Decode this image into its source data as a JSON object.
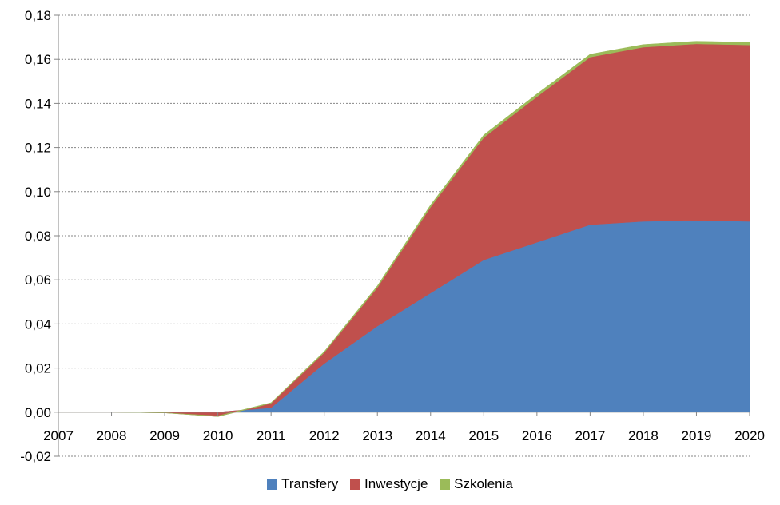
{
  "chart_data": {
    "type": "area",
    "stacked": true,
    "title": "",
    "xlabel": "",
    "ylabel": "",
    "x": [
      "2007",
      "2008",
      "2009",
      "2010",
      "2011",
      "2012",
      "2013",
      "2014",
      "2015",
      "2016",
      "2017",
      "2018",
      "2019",
      "2020"
    ],
    "ylim": [
      -0.02,
      0.18
    ],
    "yticks": [
      "-0,02",
      "0,00",
      "0,02",
      "0,04",
      "0,06",
      "0,08",
      "0,10",
      "0,12",
      "0,14",
      "0,16",
      "0,18"
    ],
    "ytick_values": [
      -0.02,
      0.0,
      0.02,
      0.04,
      0.06,
      0.08,
      0.1,
      0.12,
      0.14,
      0.16,
      0.18
    ],
    "grid": true,
    "legend_position": "bottom",
    "series": [
      {
        "name": "Transfery",
        "color": "#4F81BD",
        "values": [
          0,
          0,
          0,
          0,
          0.002,
          0.022,
          0.039,
          0.054,
          0.069,
          0.077,
          0.085,
          0.0865,
          0.087,
          0.0865
        ]
      },
      {
        "name": "Inwestycje",
        "color": "#C0504D",
        "values": [
          0,
          0,
          -0.0003,
          -0.002,
          0.002,
          0.005,
          0.0175,
          0.039,
          0.0555,
          0.066,
          0.076,
          0.079,
          0.08,
          0.08
        ]
      },
      {
        "name": "Szkolenia",
        "color": "#9BBB59",
        "values": [
          0,
          0,
          0,
          0.0003,
          0.0003,
          0.0005,
          0.0008,
          0.001,
          0.0012,
          0.0013,
          0.0013,
          0.0012,
          0.0012,
          0.0012
        ]
      }
    ]
  }
}
